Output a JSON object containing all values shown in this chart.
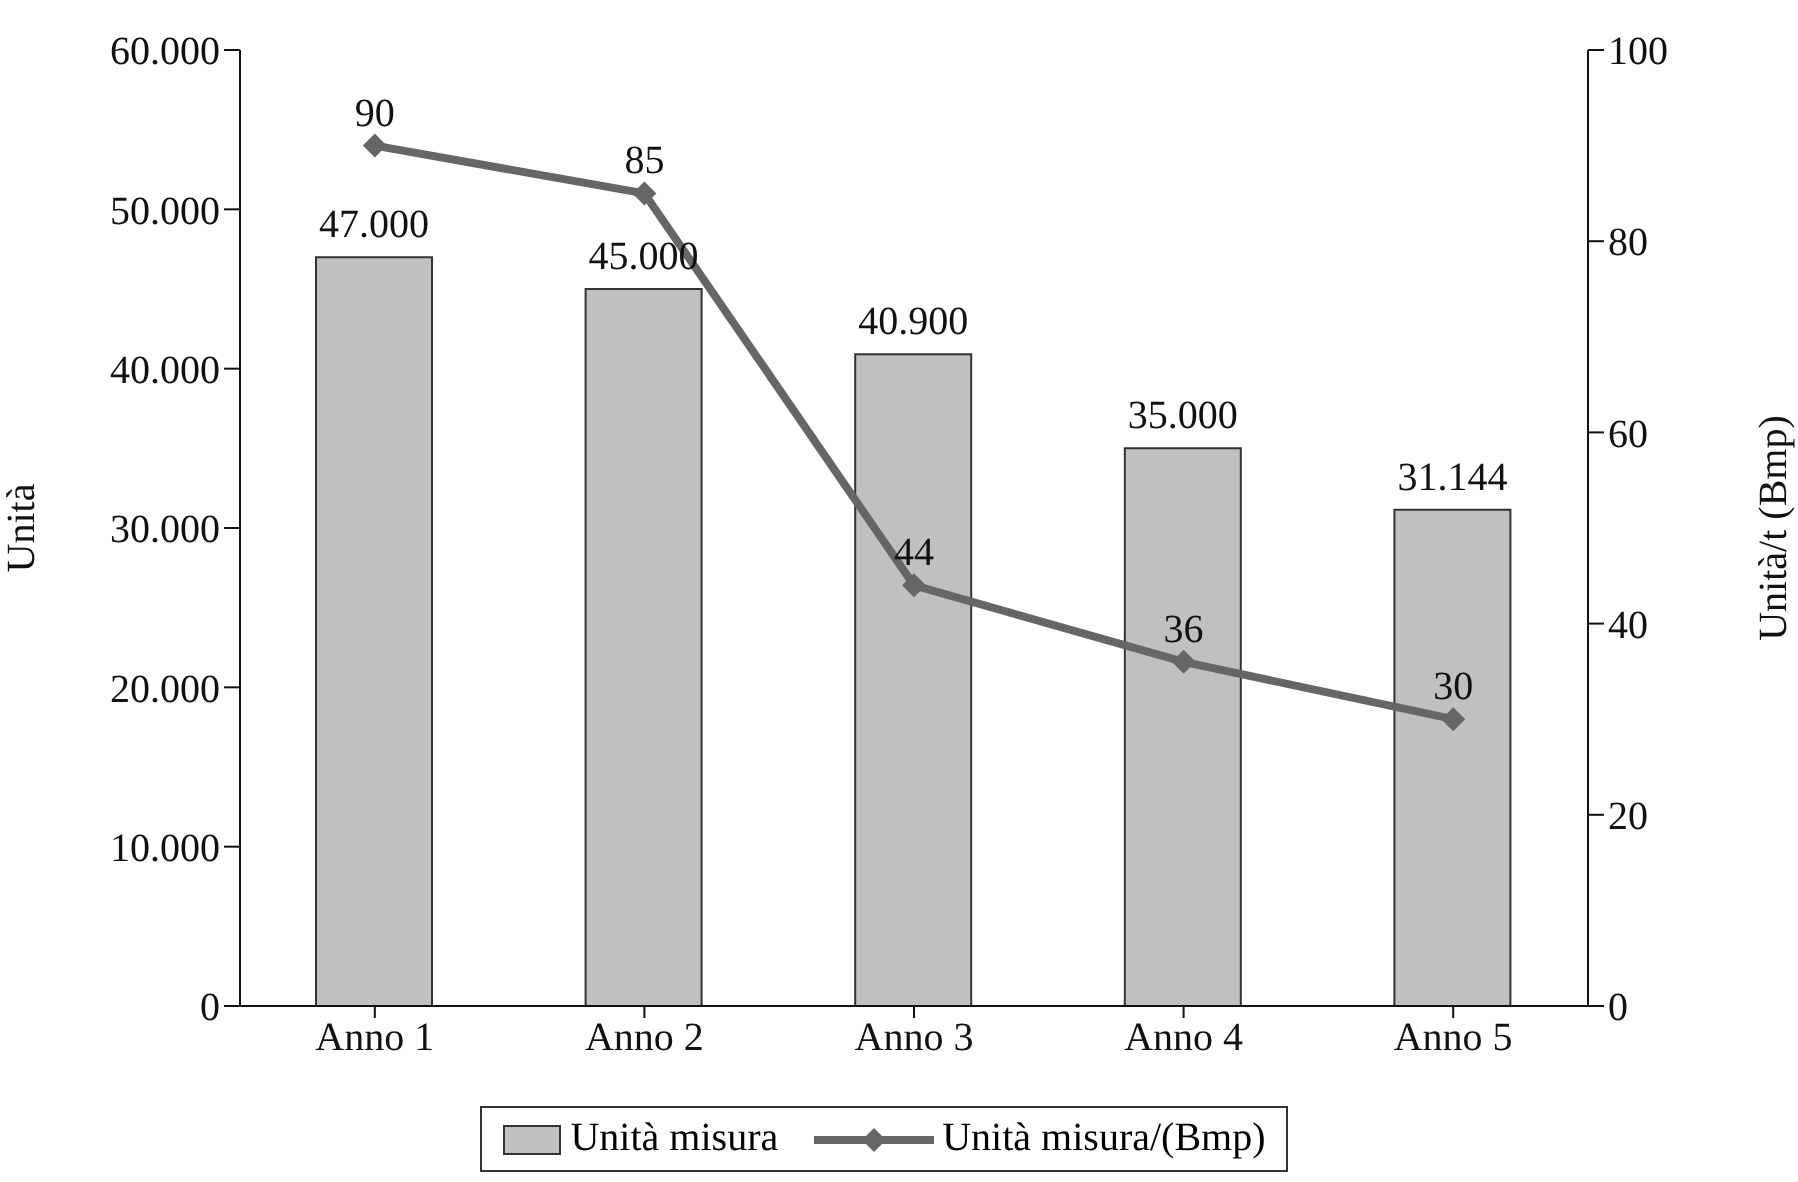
{
  "chart_data": {
    "type": "bar",
    "categories": [
      "Anno 1",
      "Anno 2",
      "Anno 3",
      "Anno 4",
      "Anno 5"
    ],
    "ylabel": "Unità",
    "y2label": "Unità/t (Bmp)",
    "ylim": [
      0,
      60000
    ],
    "yticks": [
      {
        "value": 0,
        "label": "0"
      },
      {
        "value": 10000,
        "label": "10.000"
      },
      {
        "value": 20000,
        "label": "20.000"
      },
      {
        "value": 30000,
        "label": "30.000"
      },
      {
        "value": 40000,
        "label": "40.000"
      },
      {
        "value": 50000,
        "label": "50.000"
      },
      {
        "value": 60000,
        "label": "60.000"
      }
    ],
    "y2lim": [
      0,
      100
    ],
    "y2ticks": [
      0,
      20,
      40,
      60,
      80,
      100
    ],
    "grid": false,
    "legend": "bottom",
    "series": [
      {
        "name": "Unità misura",
        "color": "#c0c0c0",
        "values": [
          47000,
          45000,
          40900,
          35000,
          31144
        ],
        "value_labels": [
          "47.000",
          "45.000",
          "40.900",
          "35.000",
          "31.144"
        ]
      },
      {
        "name": "Unità misura/(Bmp)",
        "type": "line",
        "axis": "y2",
        "color": "#666666",
        "marker": "diamond",
        "values": [
          90,
          85,
          44,
          36,
          30
        ],
        "value_labels": [
          "90",
          "85",
          "44",
          "36",
          "30"
        ]
      }
    ]
  }
}
